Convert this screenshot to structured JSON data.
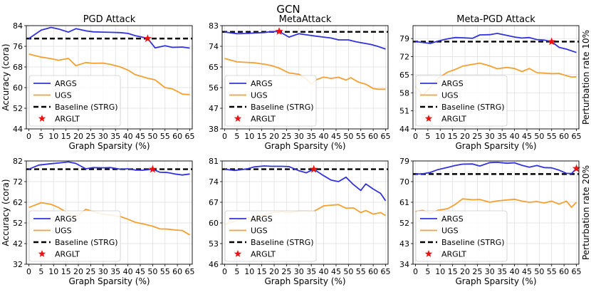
{
  "figure_title": "GCN",
  "colors": {
    "args": "#3333dd",
    "ugs": "#f5a030",
    "baseline": "#000000",
    "arglt": "#ee1111",
    "grid": "#dddddd"
  },
  "common": {
    "xlabel": "Graph Sparsity (%)",
    "ylabel": "Accuracy (cora)",
    "xticks": [
      0,
      5,
      10,
      15,
      20,
      25,
      30,
      35,
      40,
      45,
      50,
      55,
      60,
      65
    ],
    "legend": [
      "ARGS",
      "UGS",
      "Baseline (STRG)",
      "ARGLT"
    ],
    "row_labels": [
      "Perturbation rate 10%",
      "Perturbation rate 20%"
    ]
  },
  "chart_data": [
    {
      "type": "line",
      "title": "PGD Attack",
      "row": 0,
      "col": 0,
      "ylim": [
        44,
        84
      ],
      "yticks": [
        44,
        52,
        60,
        68,
        76,
        84
      ],
      "baseline": 79.0,
      "arglt": {
        "x": 48,
        "y": 79.0
      },
      "series": [
        {
          "name": "ARGS",
          "x": [
            0,
            5,
            9,
            12,
            16,
            19,
            23,
            26,
            30,
            33,
            37,
            40,
            43,
            46,
            48,
            51,
            55,
            58,
            62,
            65
          ],
          "y": [
            79,
            82.3,
            83.3,
            82.7,
            81.5,
            82.8,
            82.0,
            81.6,
            81.5,
            81.4,
            81.3,
            81.0,
            80.1,
            79.5,
            79.0,
            75.4,
            76.2,
            75.6,
            75.7,
            75.3
          ]
        },
        {
          "name": "UGS",
          "x": [
            0,
            5,
            9,
            12,
            16,
            19,
            23,
            26,
            30,
            33,
            37,
            40,
            43,
            46,
            48,
            51,
            55,
            58,
            62,
            65
          ],
          "y": [
            73.0,
            71.8,
            71.2,
            70.6,
            71.3,
            68.5,
            69.7,
            69.4,
            69.5,
            69.0,
            68.0,
            66.8,
            65.0,
            64.2,
            63.6,
            63.0,
            60.0,
            59.5,
            57.5,
            57.3
          ]
        }
      ]
    },
    {
      "type": "line",
      "title": "MetaAttack",
      "row": 0,
      "col": 1,
      "ylim": [
        38,
        83
      ],
      "yticks": [
        38,
        47,
        56,
        65,
        74,
        83
      ],
      "baseline": 80.3,
      "arglt": {
        "x": 22,
        "y": 80.5
      },
      "series": [
        {
          "name": "ARGS",
          "x": [
            0,
            5,
            9,
            12,
            16,
            19,
            22,
            26,
            30,
            33,
            37,
            40,
            43,
            46,
            50,
            53,
            56,
            59,
            62,
            65
          ],
          "y": [
            80.2,
            79.5,
            79.6,
            79.8,
            80.0,
            80.4,
            80.5,
            78.0,
            79.5,
            79.0,
            78.4,
            78.0,
            77.6,
            76.8,
            76.8,
            76.0,
            75.4,
            74.8,
            73.9,
            72.8
          ]
        },
        {
          "name": "UGS",
          "x": [
            0,
            5,
            9,
            12,
            16,
            19,
            22,
            26,
            30,
            33,
            35,
            37,
            40,
            43,
            46,
            49,
            51,
            54,
            57,
            60,
            62,
            65
          ],
          "y": [
            68.7,
            67.2,
            67.0,
            66.8,
            66.2,
            65.6,
            64.5,
            62.4,
            61.8,
            59.8,
            57.5,
            59.4,
            60.6,
            60.0,
            60.5,
            59.3,
            60.3,
            58.4,
            57.5,
            55.6,
            55.3,
            55.3
          ]
        }
      ]
    },
    {
      "type": "line",
      "title": "Meta-PGD Attack",
      "row": 0,
      "col": 2,
      "ylim": [
        44,
        84
      ],
      "yticks": [
        44,
        51,
        58,
        65,
        72,
        79
      ],
      "baseline": 77.8,
      "arglt": {
        "x": 55,
        "y": 77.8
      },
      "series": [
        {
          "name": "ARGS",
          "x": [
            0,
            3,
            6,
            9,
            13,
            16,
            19,
            23,
            26,
            30,
            33,
            37,
            40,
            43,
            46,
            49,
            52,
            55,
            58,
            61,
            65
          ],
          "y": [
            77.8,
            77.5,
            77.1,
            78.0,
            78.9,
            79.4,
            79.3,
            79.1,
            80.4,
            80.5,
            81.0,
            80.2,
            79.6,
            79.2,
            79.4,
            78.6,
            78.4,
            77.8,
            75.6,
            74.9,
            73.6
          ]
        },
        {
          "name": "UGS",
          "x": [
            0,
            3,
            6,
            9,
            13,
            16,
            19,
            23,
            26,
            30,
            33,
            37,
            40,
            43,
            46,
            49,
            52,
            55,
            58,
            61,
            63,
            65
          ],
          "y": [
            60.5,
            57.0,
            60.0,
            63.5,
            66.0,
            67.0,
            68.3,
            69.0,
            69.5,
            68.4,
            67.3,
            67.8,
            67.4,
            66.2,
            67.4,
            65.8,
            65.6,
            65.4,
            65.5,
            64.6,
            64.1,
            64.2
          ]
        }
      ]
    },
    {
      "type": "line",
      "title": "",
      "row": 1,
      "col": 0,
      "ylim": [
        32,
        82
      ],
      "yticks": [
        32,
        42,
        52,
        62,
        72,
        82
      ],
      "baseline": 78.0,
      "arglt": {
        "x": 50,
        "y": 78.0
      },
      "series": [
        {
          "name": "ARGS",
          "x": [
            0,
            4,
            9,
            12,
            16,
            19,
            23,
            26,
            30,
            33,
            37,
            40,
            43,
            46,
            50,
            53,
            56,
            59,
            62,
            65
          ],
          "y": [
            78.0,
            80.0,
            80.7,
            81.0,
            81.5,
            80.8,
            78.2,
            78.8,
            78.7,
            78.8,
            78.0,
            78.2,
            77.6,
            77.5,
            78.0,
            76.5,
            76.4,
            75.7,
            75.2,
            75.7
          ]
        },
        {
          "name": "UGS",
          "x": [
            0,
            5,
            9,
            12,
            16,
            19,
            23,
            26,
            30,
            33,
            37,
            40,
            43,
            46,
            50,
            53,
            56,
            59,
            62,
            65
          ],
          "y": [
            59.5,
            61.8,
            61.0,
            59.5,
            56.6,
            54.8,
            58.6,
            57.5,
            56.2,
            55.8,
            55.1,
            53.8,
            52.3,
            51.6,
            50.4,
            49.1,
            49.0,
            48.6,
            48.3,
            46.2
          ]
        }
      ]
    },
    {
      "type": "line",
      "title": "",
      "row": 1,
      "col": 1,
      "ylim": [
        46,
        81
      ],
      "yticks": [
        46,
        53,
        60,
        67,
        74,
        81
      ],
      "baseline": 78.2,
      "arglt": {
        "x": 36,
        "y": 78.2
      },
      "series": [
        {
          "name": "ARGS",
          "x": [
            0,
            4,
            9,
            12,
            16,
            19,
            23,
            26,
            30,
            33,
            36,
            40,
            43,
            46,
            49,
            52,
            55,
            57,
            60,
            63,
            65
          ],
          "y": [
            78.2,
            77.8,
            78.3,
            79.0,
            79.3,
            79.2,
            79.2,
            79.1,
            77.7,
            77.0,
            78.2,
            76.0,
            74.5,
            74.0,
            75.5,
            73.0,
            71.0,
            73.2,
            71.5,
            70.0,
            67.5
          ]
        },
        {
          "name": "UGS",
          "x": [
            0,
            5,
            9,
            12,
            16,
            19,
            23,
            26,
            30,
            33,
            36,
            40,
            43,
            46,
            49,
            52,
            55,
            57,
            60,
            63,
            65
          ],
          "y": [
            59.5,
            60.8,
            61.8,
            61.2,
            62.8,
            63.4,
            63.8,
            63.5,
            64.0,
            64.0,
            63.9,
            65.8,
            66.0,
            66.2,
            65.0,
            65.1,
            63.5,
            64.2,
            63.0,
            63.5,
            62.5
          ]
        }
      ]
    },
    {
      "type": "line",
      "title": "",
      "row": 1,
      "col": 2,
      "ylim": [
        34,
        79
      ],
      "yticks": [
        34,
        43,
        52,
        61,
        70,
        79
      ],
      "baseline": 73.3,
      "arglt": {
        "x": 65,
        "y": 75.7
      },
      "series": [
        {
          "name": "ARGS",
          "x": [
            0,
            3,
            6,
            9,
            13,
            16,
            19,
            23,
            26,
            30,
            33,
            37,
            40,
            43,
            46,
            49,
            52,
            55,
            58,
            61,
            63,
            65
          ],
          "y": [
            73.3,
            73.4,
            74.0,
            75.2,
            76.2,
            77.0,
            77.6,
            77.7,
            76.8,
            78.3,
            78.4,
            78.0,
            78.2,
            77.1,
            76.3,
            77.0,
            76.1,
            76.0,
            75.0,
            73.6,
            73.5,
            75.7
          ]
        },
        {
          "name": "UGS",
          "x": [
            0,
            3,
            6,
            9,
            13,
            16,
            19,
            23,
            26,
            30,
            33,
            37,
            40,
            43,
            46,
            49,
            52,
            55,
            58,
            61,
            63,
            65
          ],
          "y": [
            57.0,
            57.5,
            56.2,
            57.5,
            58.2,
            60.0,
            62.5,
            62.1,
            62.2,
            61.0,
            61.6,
            62.0,
            62.3,
            61.5,
            61.0,
            61.3,
            60.7,
            61.5,
            60.2,
            61.5,
            58.8,
            61.0
          ]
        }
      ]
    }
  ]
}
